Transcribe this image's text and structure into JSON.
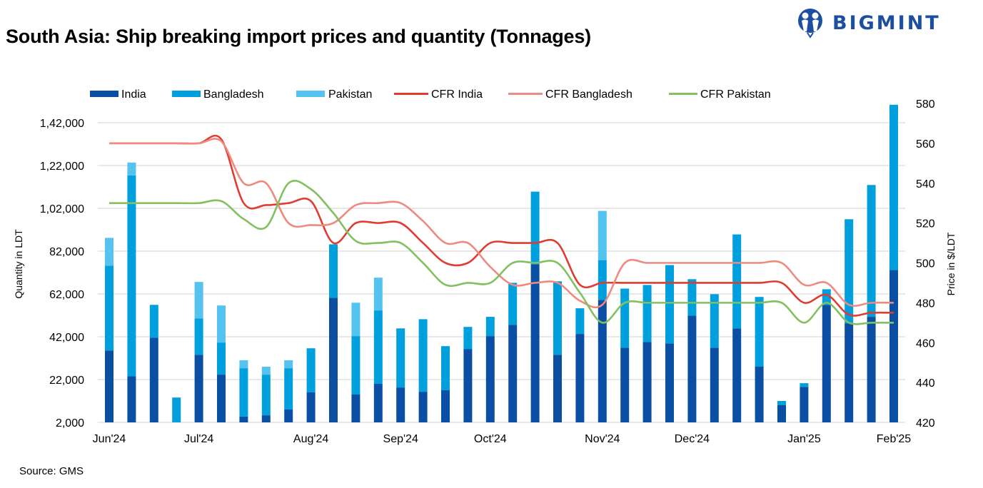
{
  "title": "South Asia: Ship breaking import prices and quantity (Tonnages)",
  "source": "Source: GMS",
  "logo": {
    "text": "BIGMINT",
    "color": "#1D4FA0"
  },
  "chart_data": {
    "type": "bar+line",
    "stacked": true,
    "categories": [
      "Jun'24",
      "",
      "",
      "",
      "Jul'24",
      "",
      "",
      "",
      "",
      "Aug'24",
      "",
      "",
      "",
      "Sep'24",
      "",
      "",
      "",
      "Oct'24",
      "",
      "",
      "",
      "",
      "Nov'24",
      "",
      "",
      "",
      "Dec'24",
      "",
      "",
      "",
      "",
      "Jan'25",
      "",
      "",
      "",
      "Feb'25"
    ],
    "y_left": {
      "label": "Quantity in LDT",
      "range": [
        2000,
        151000
      ],
      "ticks": [
        2000,
        22000,
        42000,
        62000,
        82000,
        102000,
        122000,
        142000
      ],
      "tick_labels": [
        "2,000",
        "22,000",
        "42,000",
        "62,000",
        "82,000",
        "1,02,000",
        "1,22,000",
        "1,42,000"
      ]
    },
    "y_right": {
      "label": "Price in $/LDT",
      "range": [
        420,
        580
      ],
      "ticks": [
        420,
        440,
        460,
        480,
        500,
        520,
        540,
        560,
        580
      ],
      "tick_labels": [
        "420",
        "440",
        "460",
        "480",
        "500",
        "520",
        "540",
        "560",
        "580"
      ]
    },
    "grid": true,
    "legend_position": "top",
    "bar_series": [
      {
        "name": "India",
        "color": "#0A4FA3",
        "values": [
          35600,
          23600,
          41600,
          0,
          33600,
          24300,
          4700,
          5300,
          8000,
          16000,
          60200,
          15000,
          20000,
          18300,
          16300,
          17000,
          36300,
          42300,
          47600,
          75900,
          33600,
          43300,
          59200,
          36900,
          39600,
          38900,
          51900,
          36900,
          45900,
          28000,
          10000,
          18600,
          56900,
          48300,
          51300,
          73200
        ]
      },
      {
        "name": "Bangladesh",
        "color": "#00A0DE",
        "values": [
          39600,
          93800,
          15300,
          13600,
          17000,
          15000,
          22600,
          19000,
          19300,
          20600,
          25000,
          27300,
          34300,
          27600,
          33900,
          20600,
          10300,
          9000,
          19600,
          33900,
          34300,
          12000,
          18600,
          27600,
          26600,
          36600,
          17000,
          25000,
          43900,
          32600,
          2000,
          1700,
          7300,
          48600,
          61600,
          77200
        ]
      },
      {
        "name": "Pakistan",
        "color": "#55C3F0",
        "values": [
          13000,
          6000,
          0,
          0,
          17000,
          17300,
          3700,
          3700,
          3700,
          0,
          0,
          15600,
          15300,
          0,
          0,
          0,
          0,
          0,
          0,
          0,
          0,
          0,
          23000,
          0,
          0,
          0,
          0,
          0,
          0,
          0,
          0,
          0,
          0,
          0,
          0,
          0
        ]
      }
    ],
    "line_series": [
      {
        "name": "CFR India",
        "color": "#E03C31",
        "values": [
          560,
          560,
          560,
          560,
          560,
          562,
          530,
          529,
          530,
          531,
          510,
          520,
          520,
          520,
          510,
          500,
          500,
          510,
          510,
          510,
          510,
          489,
          490,
          490,
          490,
          490,
          490,
          490,
          490,
          490,
          490,
          480,
          484,
          474,
          475,
          475
        ]
      },
      {
        "name": "CFR Bangladesh",
        "color": "#EE8A80",
        "values": [
          560,
          560,
          560,
          560,
          560,
          561,
          540,
          540,
          520,
          519,
          520,
          529,
          530,
          530,
          521,
          510,
          510,
          498,
          489,
          490,
          490,
          481,
          479,
          500,
          500,
          500,
          500,
          500,
          500,
          500,
          500,
          489,
          490,
          479,
          480,
          480
        ]
      },
      {
        "name": "CFR Pakistan",
        "color": "#82C060",
        "values": [
          530,
          530,
          530,
          530,
          530,
          531,
          522,
          518,
          540,
          537,
          525,
          511,
          510,
          510,
          500,
          489,
          490,
          490,
          500,
          500,
          500,
          485,
          470,
          480,
          480,
          480,
          480,
          480,
          480,
          480,
          480,
          470,
          480,
          470,
          470,
          470
        ]
      }
    ]
  }
}
